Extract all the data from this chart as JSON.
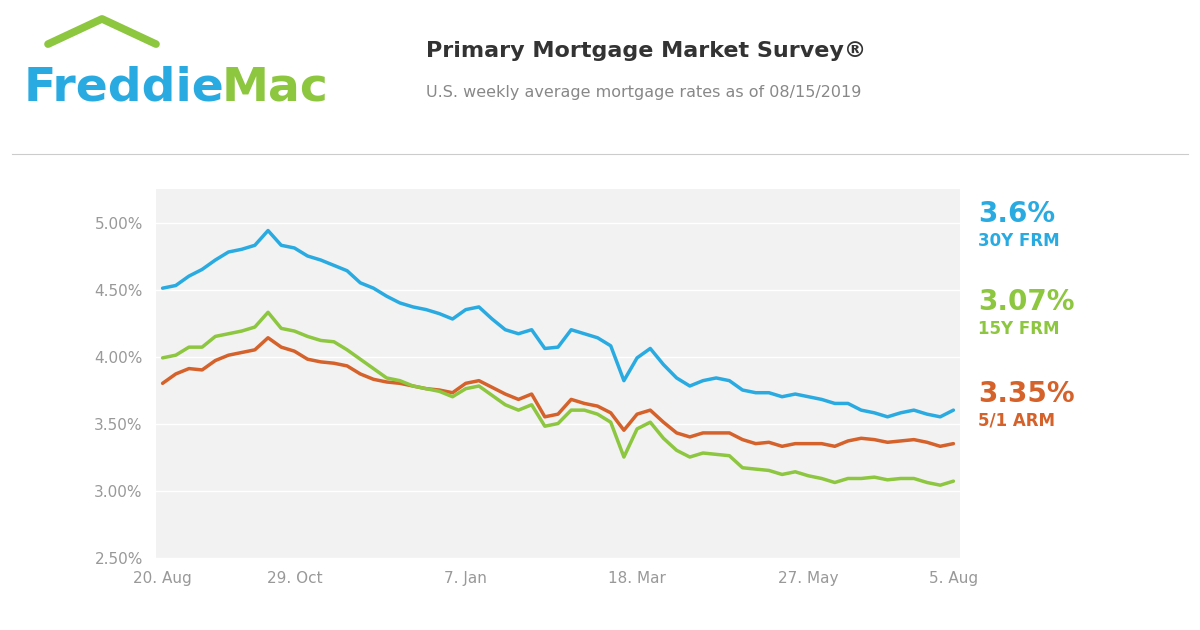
{
  "title": "Primary Mortgage Market Survey®",
  "subtitle": "U.S. weekly average mortgage rates as of 08/15/2019",
  "title_color": "#333333",
  "subtitle_color": "#888888",
  "background_color": "#ffffff",
  "plot_bg_color": "#f2f2f2",
  "grid_color": "#ffffff",
  "x_labels": [
    "20. Aug",
    "29. Oct",
    "7. Jan",
    "18. Mar",
    "27. May",
    "5. Aug"
  ],
  "x_tick_positions": [
    0,
    10,
    23,
    36,
    49,
    60
  ],
  "ylim": [
    2.5,
    5.25
  ],
  "y_ticks": [
    2.5,
    3.0,
    3.5,
    4.0,
    4.5,
    5.0
  ],
  "y_labels": [
    "2.50%",
    "3.00%",
    "3.50%",
    "4.00%",
    "4.50%",
    "5.00%"
  ],
  "line_30y_color": "#29abe2",
  "line_15y_color": "#8dc63f",
  "line_arm_color": "#d4622a",
  "line_width": 2.5,
  "label_30y_rate": "3.6%",
  "label_30y_name": "30Y FRM",
  "label_15y_rate": "3.07%",
  "label_15y_name": "15Y FRM",
  "label_arm_rate": "3.35%",
  "label_arm_name": "5/1 ARM",
  "freddie_blue": "#29abe2",
  "freddie_green": "#8dc63f",
  "data_30y": [
    4.51,
    4.53,
    4.6,
    4.65,
    4.72,
    4.78,
    4.8,
    4.83,
    4.94,
    4.83,
    4.81,
    4.75,
    4.72,
    4.68,
    4.64,
    4.55,
    4.51,
    4.45,
    4.4,
    4.37,
    4.35,
    4.32,
    4.28,
    4.35,
    4.37,
    4.28,
    4.2,
    4.17,
    4.2,
    4.06,
    4.07,
    4.2,
    4.17,
    4.14,
    4.08,
    3.82,
    3.99,
    4.06,
    3.94,
    3.84,
    3.78,
    3.82,
    3.84,
    3.82,
    3.75,
    3.73,
    3.73,
    3.7,
    3.72,
    3.7,
    3.68,
    3.65,
    3.65,
    3.6,
    3.58,
    3.55,
    3.58,
    3.6,
    3.57,
    3.55,
    3.6
  ],
  "data_15y": [
    3.99,
    4.01,
    4.07,
    4.07,
    4.15,
    4.17,
    4.19,
    4.22,
    4.33,
    4.21,
    4.19,
    4.15,
    4.12,
    4.11,
    4.05,
    3.98,
    3.91,
    3.84,
    3.82,
    3.78,
    3.76,
    3.74,
    3.7,
    3.76,
    3.78,
    3.71,
    3.64,
    3.6,
    3.64,
    3.48,
    3.5,
    3.6,
    3.6,
    3.57,
    3.51,
    3.25,
    3.46,
    3.51,
    3.39,
    3.3,
    3.25,
    3.28,
    3.27,
    3.26,
    3.17,
    3.16,
    3.15,
    3.12,
    3.14,
    3.11,
    3.09,
    3.06,
    3.09,
    3.09,
    3.1,
    3.08,
    3.09,
    3.09,
    3.06,
    3.04,
    3.07
  ],
  "data_arm": [
    3.8,
    3.87,
    3.91,
    3.9,
    3.97,
    4.01,
    4.03,
    4.05,
    4.14,
    4.07,
    4.04,
    3.98,
    3.96,
    3.95,
    3.93,
    3.87,
    3.83,
    3.81,
    3.8,
    3.78,
    3.76,
    3.75,
    3.73,
    3.8,
    3.82,
    3.77,
    3.72,
    3.68,
    3.72,
    3.55,
    3.57,
    3.68,
    3.65,
    3.63,
    3.58,
    3.45,
    3.57,
    3.6,
    3.51,
    3.43,
    3.4,
    3.43,
    3.43,
    3.43,
    3.38,
    3.35,
    3.36,
    3.33,
    3.35,
    3.35,
    3.35,
    3.33,
    3.37,
    3.39,
    3.38,
    3.36,
    3.37,
    3.38,
    3.36,
    3.33,
    3.35
  ]
}
